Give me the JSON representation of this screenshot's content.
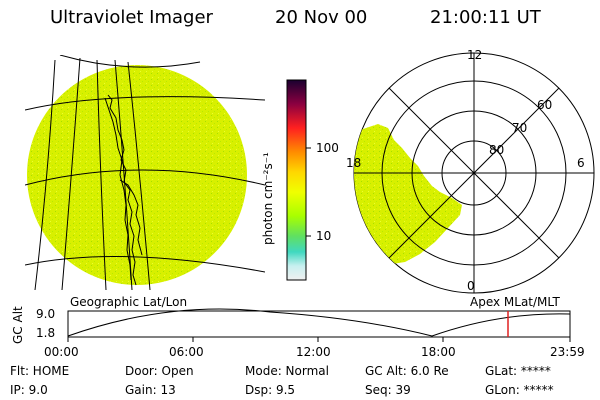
{
  "header": {
    "instrument": "Ultraviolet Imager",
    "date": "20 Nov 00",
    "time": "21:00:11 UT"
  },
  "colorbar": {
    "label": "photon cm⁻²s⁻¹",
    "ticks": [
      "100",
      "10"
    ],
    "colors": [
      "#1a0030",
      "#8b0040",
      "#ff2020",
      "#ff8c00",
      "#ffd700",
      "#f0ff00",
      "#a8ff00",
      "#60e060",
      "#40d8c0",
      "#c8f0f0",
      "#f0f0f0"
    ]
  },
  "polar_plot": {
    "mlt_labels": [
      "12",
      "18",
      "6",
      "0"
    ],
    "lat_labels": [
      "60",
      "70",
      "80"
    ]
  },
  "geo_label": "Geographic Lat/Lon",
  "apex_label": "Apex MLat/MLT",
  "altitude_plot": {
    "ylabel": "GC Alt",
    "yticks": [
      "9.0",
      "1.8"
    ],
    "xticks": [
      "00:00",
      "06:00",
      "12:00",
      "18:00",
      "23:59"
    ],
    "marker_color": "#e02020"
  },
  "status": {
    "flt": "Flt: HOME",
    "ip": "IP:  9.0",
    "door": "Door: Open",
    "gain": "Gain: 13",
    "mode": "Mode: Normal",
    "dsp": "Dsp:     9.5",
    "gcalt": "GC Alt: 6.0 Re",
    "seq": "Seq: 39",
    "glat": "GLat: *****",
    "glon": "GLon: *****"
  },
  "image_colors": {
    "fill": "#d8f000",
    "speckle": "#a8e000"
  }
}
